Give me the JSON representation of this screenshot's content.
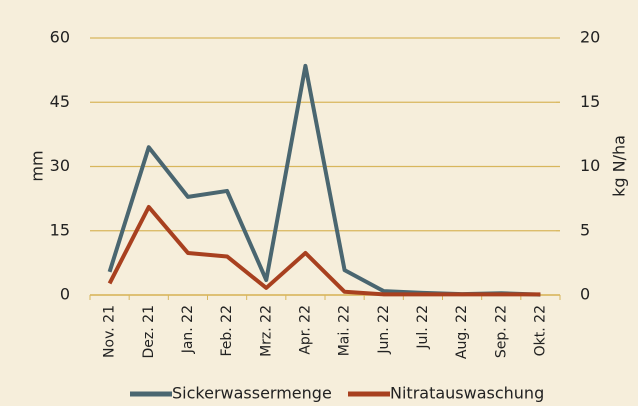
{
  "chart_data": {
    "type": "line",
    "categories": [
      "Nov. 21",
      "Dez. 21",
      "Jan. 22",
      "Feb. 22",
      "Mrz. 22",
      "Apr. 22",
      "Mai. 22",
      "Jun. 22",
      "Jul. 22",
      "Aug. 22",
      "Sep. 22",
      "Okt. 22"
    ],
    "series": [
      {
        "name": "Sickerwassermenge",
        "color": "#4a6670",
        "values": [
          5.4,
          34.5,
          22.9,
          24.3,
          3.5,
          53.5,
          5.8,
          0.9,
          0.5,
          0.2,
          0.4,
          0.1
        ]
      },
      {
        "name": "Nitratauswaschung",
        "color": "#a8401f",
        "axis": "y2",
        "values": [
          0.9,
          6.85,
          3.27,
          3.0,
          0.55,
          3.27,
          0.25,
          0.05,
          0.05,
          0.05,
          0.05,
          0.05
        ]
      }
    ],
    "ylabel": "mm",
    "y2label": "kg N/ha",
    "ylim": [
      0,
      60
    ],
    "yticks": [
      0,
      15,
      30,
      45,
      60
    ],
    "y2lim": [
      0,
      20
    ],
    "y2ticks": [
      0,
      5,
      10,
      15,
      20
    ],
    "grid": true,
    "grid_color": "#d8b65c",
    "background": "#f6eedb",
    "legend": "bottom"
  }
}
